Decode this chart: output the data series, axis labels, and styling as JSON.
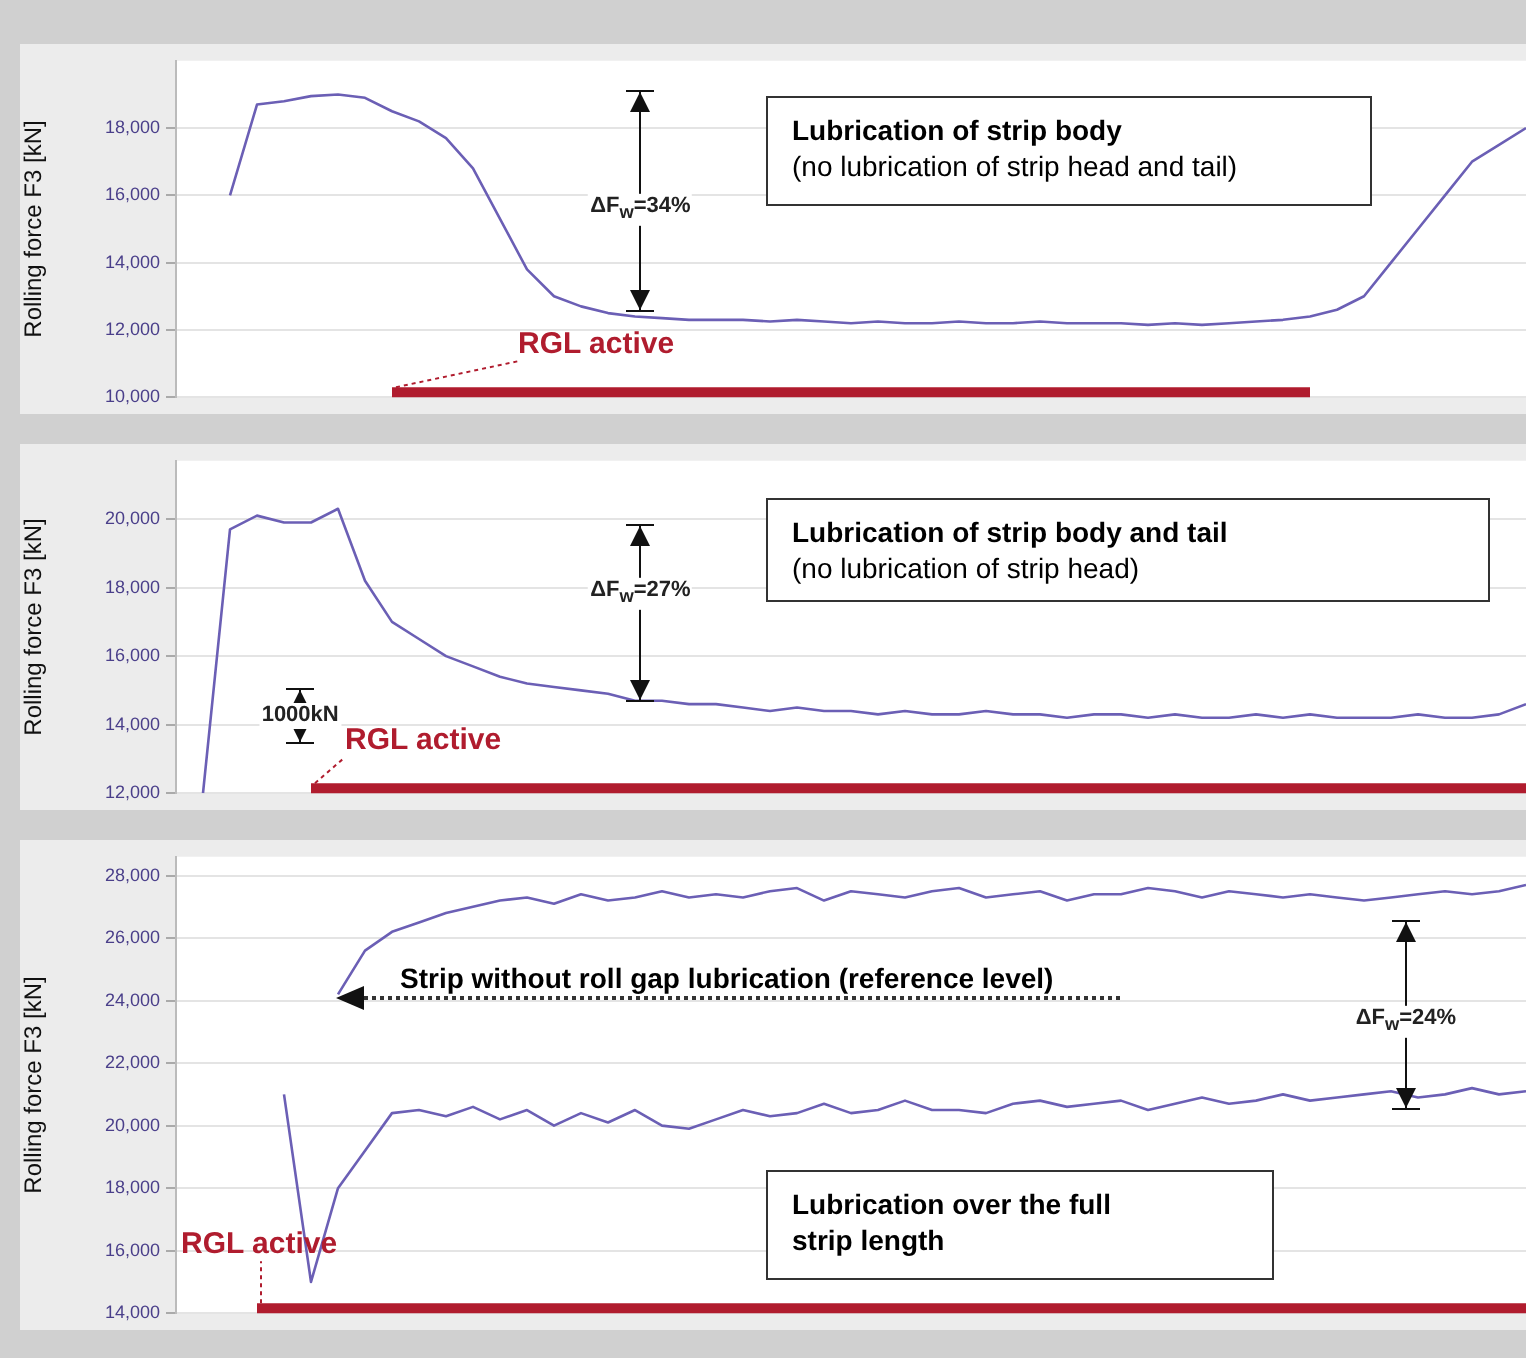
{
  "chart_data": [
    {
      "type": "line",
      "ylabel": "Rolling force F3 [kN]",
      "categories": [
        null,
        null,
        null,
        null,
        null,
        null,
        null,
        null,
        null,
        null,
        null,
        null,
        null,
        null,
        null,
        null,
        null,
        null,
        null,
        null,
        null,
        null,
        null,
        null,
        null,
        null,
        null,
        null,
        null,
        null,
        null,
        null,
        null,
        null,
        null,
        null,
        null,
        null,
        null,
        null,
        null,
        null,
        null,
        null,
        null,
        null,
        null,
        null,
        null,
        null,
        null
      ],
      "ylim": [
        10000,
        20000
      ],
      "yticks": [
        {
          "value": 10000,
          "label": "10,000"
        },
        {
          "value": 12000,
          "label": "12,000"
        },
        {
          "value": 14000,
          "label": "14,000"
        },
        {
          "value": 16000,
          "label": "16,000"
        },
        {
          "value": 18000,
          "label": "18,000"
        }
      ],
      "tick_labels": "y",
      "grid": "y",
      "legend": false,
      "marker": "none",
      "line_style": "solid",
      "series": [
        {
          "color": "#6b5fb5",
          "values": [
            null,
            null,
            16000,
            18700,
            18800,
            18950,
            19000,
            18900,
            18500,
            18200,
            17700,
            16800,
            15300,
            13800,
            13000,
            12700,
            12500,
            12400,
            12350,
            12300,
            12300,
            12300,
            12250,
            12300,
            12250,
            12200,
            12250,
            12200,
            12200,
            12250,
            12200,
            12200,
            12250,
            12200,
            12200,
            12200,
            12150,
            12200,
            12150,
            12200,
            12250,
            12300,
            12400,
            12600,
            13000,
            14000,
            15000,
            16000,
            17000,
            17500,
            18000
          ]
        },
        {
          "name": "RGL active",
          "color": "#b01c2e",
          "values": [
            null,
            null,
            null,
            null,
            null,
            null,
            null,
            null,
            10000,
            10000,
            10000,
            10000,
            10000,
            10000,
            10000,
            10000,
            10000,
            10000,
            10000,
            10000,
            10000,
            10000,
            10000,
            10000,
            10000,
            10000,
            10000,
            10000,
            10000,
            10000,
            10000,
            10000,
            10000,
            10000,
            10000,
            10000,
            10000,
            10000,
            10000,
            10000,
            10000,
            10000,
            10000,
            null,
            null,
            null,
            null,
            null,
            null,
            null,
            null
          ]
        }
      ],
      "annotations": [
        "ΔF$_{w}$=34%",
        "Lubrication of strip body\n(no lubrication of strip head and tail)"
      ]
    },
    {
      "type": "line",
      "ylabel": "Rolling force F3 [kN]",
      "categories": [
        null,
        null,
        null,
        null,
        null,
        null,
        null,
        null,
        null,
        null,
        null,
        null,
        null,
        null,
        null,
        null,
        null,
        null,
        null,
        null,
        null,
        null,
        null,
        null,
        null,
        null,
        null,
        null,
        null,
        null,
        null,
        null,
        null,
        null,
        null,
        null,
        null,
        null,
        null,
        null,
        null,
        null,
        null,
        null,
        null,
        null,
        null,
        null,
        null,
        null,
        null
      ],
      "ylim": [
        12000,
        21700
      ],
      "yticks": [
        {
          "value": 12000,
          "label": "12,000"
        },
        {
          "value": 14000,
          "label": "14,000"
        },
        {
          "value": 16000,
          "label": "16,000"
        },
        {
          "value": 18000,
          "label": "18,000"
        },
        {
          "value": 20000,
          "label": "20,000"
        }
      ],
      "tick_labels": "y",
      "grid": "y",
      "legend": false,
      "marker": "none",
      "line_style": "solid",
      "series": [
        {
          "color": "#6b5fb5",
          "values": [
            null,
            12000,
            19700,
            20100,
            19900,
            19900,
            20300,
            18200,
            17000,
            16500,
            16000,
            15700,
            15400,
            15200,
            15100,
            15000,
            14900,
            14700,
            14700,
            14600,
            14600,
            14500,
            14400,
            14500,
            14400,
            14400,
            14300,
            14400,
            14300,
            14300,
            14400,
            14300,
            14300,
            14200,
            14300,
            14300,
            14200,
            14300,
            14200,
            14200,
            14300,
            14200,
            14300,
            14200,
            14200,
            14200,
            14300,
            14200,
            14200,
            14300,
            14600
          ]
        },
        {
          "name": "RGL active",
          "color": "#b01c2e",
          "values": [
            null,
            null,
            null,
            null,
            null,
            12000,
            12000,
            12000,
            12000,
            12000,
            12000,
            12000,
            12000,
            12000,
            12000,
            12000,
            12000,
            12000,
            12000,
            12000,
            12000,
            12000,
            12000,
            12000,
            12000,
            12000,
            12000,
            12000,
            12000,
            12000,
            12000,
            12000,
            12000,
            12000,
            12000,
            12000,
            12000,
            12000,
            12000,
            12000,
            12000,
            12000,
            12000,
            12000,
            12000,
            12000,
            12000,
            12000,
            12000,
            12000,
            12000
          ]
        }
      ],
      "annotations": [
        "ΔF$_{w}$=27%",
        "1000kN",
        "Lubrication of strip body and tail\n(no lubrication of strip head)"
      ]
    },
    {
      "type": "line",
      "ylabel": "Rolling force F3 [kN]",
      "categories": [
        null,
        null,
        null,
        null,
        null,
        null,
        null,
        null,
        null,
        null,
        null,
        null,
        null,
        null,
        null,
        null,
        null,
        null,
        null,
        null,
        null,
        null,
        null,
        null,
        null,
        null,
        null,
        null,
        null,
        null,
        null,
        null,
        null,
        null,
        null,
        null,
        null,
        null,
        null,
        null,
        null,
        null,
        null,
        null,
        null,
        null,
        null,
        null,
        null,
        null,
        null
      ],
      "ylim": [
        14000,
        28600
      ],
      "yticks": [
        {
          "value": 14000,
          "label": "14,000"
        },
        {
          "value": 16000,
          "label": "16,000"
        },
        {
          "value": 18000,
          "label": "18,000"
        },
        {
          "value": 20000,
          "label": "20,000"
        },
        {
          "value": 22000,
          "label": "22,000"
        },
        {
          "value": 24000,
          "label": "24,000"
        },
        {
          "value": 26000,
          "label": "26,000"
        },
        {
          "value": 28000,
          "label": "28,000"
        }
      ],
      "tick_labels": "y",
      "grid": "y",
      "legend": false,
      "marker": "none",
      "line_style": "solid",
      "series": [
        {
          "color": "#6b5fb5",
          "values": [
            null,
            null,
            null,
            null,
            null,
            null,
            24200,
            25600,
            26200,
            26500,
            26800,
            27000,
            27200,
            27300,
            27100,
            27400,
            27200,
            27300,
            27500,
            27300,
            27400,
            27300,
            27500,
            27600,
            27200,
            27500,
            27400,
            27300,
            27500,
            27600,
            27300,
            27400,
            27500,
            27200,
            27400,
            27400,
            27600,
            27500,
            27300,
            27500,
            27400,
            27300,
            27400,
            27300,
            27200,
            27300,
            27400,
            27500,
            27400,
            27500,
            27700
          ]
        },
        {
          "color": "#6b5fb5",
          "values": [
            null,
            null,
            null,
            null,
            21000,
            15000,
            18000,
            19200,
            20400,
            20500,
            20300,
            20600,
            20200,
            20500,
            20000,
            20400,
            20100,
            20500,
            20000,
            19900,
            20200,
            20500,
            20300,
            20400,
            20700,
            20400,
            20500,
            20800,
            20500,
            20500,
            20400,
            20700,
            20800,
            20600,
            20700,
            20800,
            20500,
            20700,
            20900,
            20700,
            20800,
            21000,
            20800,
            20900,
            21000,
            21100,
            20900,
            21000,
            21200,
            21000,
            21100
          ]
        },
        {
          "name": "RGL active",
          "color": "#b01c2e",
          "values": [
            null,
            null,
            null,
            14000,
            14000,
            14000,
            14000,
            14000,
            14000,
            14000,
            14000,
            14000,
            14000,
            14000,
            14000,
            14000,
            14000,
            14000,
            14000,
            14000,
            14000,
            14000,
            14000,
            14000,
            14000,
            14000,
            14000,
            14000,
            14000,
            14000,
            14000,
            14000,
            14000,
            14000,
            14000,
            14000,
            14000,
            14000,
            14000,
            14000,
            14000,
            14000,
            14000,
            14000,
            14000,
            14000,
            14000,
            14000,
            14000,
            14000,
            14000
          ]
        }
      ],
      "annotations": [
        "ΔF$_{w}$=24%",
        "Strip without roll gap lubrication (reference level)",
        "Lubrication over the full\nstrip length"
      ]
    }
  ]
}
